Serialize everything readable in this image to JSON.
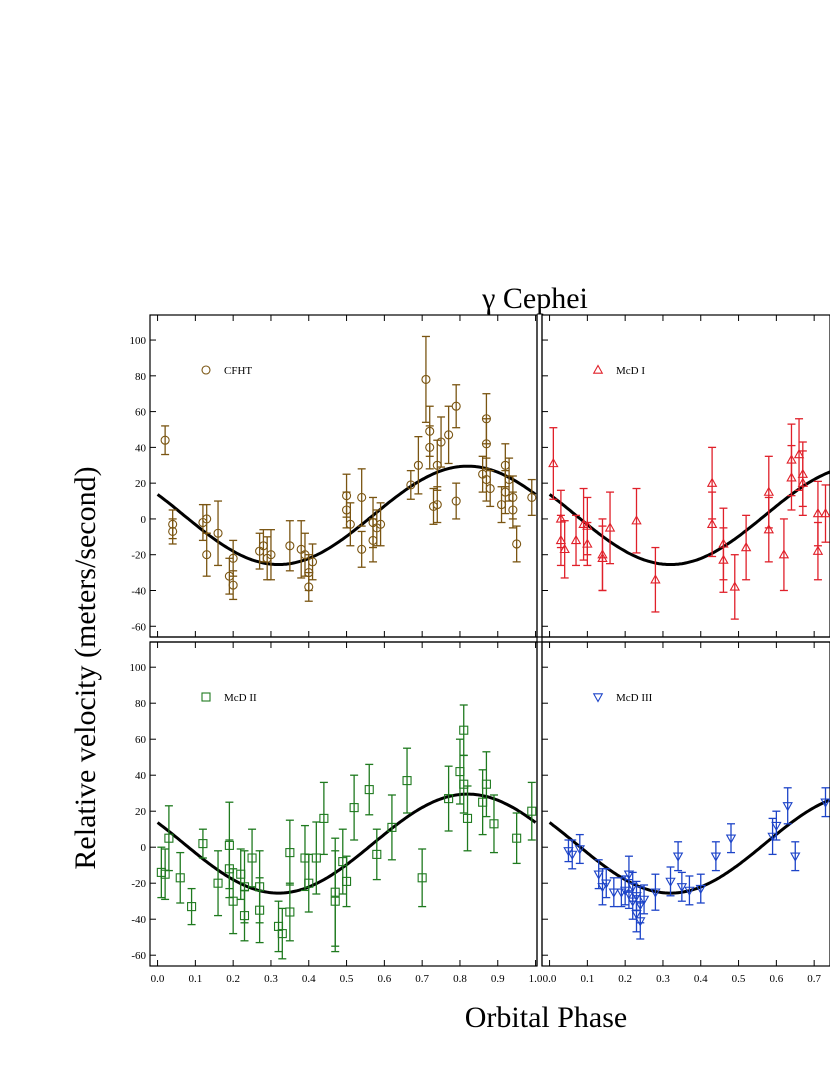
{
  "title": "γ Cephei",
  "xlabel": "Orbital Phase",
  "ylabel": "Relative velocity (meters/second)",
  "colors": {
    "CFHT": "#7a5512",
    "McD I": "#e0202a",
    "McD II": "#1f7a1f",
    "McD III": "#1d44c8",
    "curve": "#000000"
  },
  "chart_data": [
    {
      "type": "scatter",
      "panel": "top-left",
      "legend": "CFHT",
      "marker": "circle",
      "xlim": [
        -0.02,
        1.0
      ],
      "ylim": [
        -66,
        114
      ],
      "xticks": [
        "0.0",
        "0.1",
        "0.2",
        "0.3",
        "0.4",
        "0.5",
        "0.6",
        "0.7",
        "0.8",
        "0.9",
        "1.0"
      ],
      "yticks": [
        "-60",
        "-40",
        "-20",
        "0",
        "20",
        "40",
        "60",
        "80",
        "100"
      ],
      "curve": {
        "offset": 2,
        "amplitude": 27.5,
        "peak_phase": 0.82
      },
      "points": [
        {
          "x": 0.02,
          "y": 44,
          "err": 8
        },
        {
          "x": 0.04,
          "y": -3,
          "err": 8
        },
        {
          "x": 0.04,
          "y": -7,
          "err": 7
        },
        {
          "x": 0.12,
          "y": -2,
          "err": 10
        },
        {
          "x": 0.13,
          "y": 0,
          "err": 8
        },
        {
          "x": 0.13,
          "y": -20,
          "err": 12
        },
        {
          "x": 0.16,
          "y": -8,
          "err": 18
        },
        {
          "x": 0.19,
          "y": -32,
          "err": 10
        },
        {
          "x": 0.2,
          "y": -22,
          "err": 10
        },
        {
          "x": 0.2,
          "y": -37,
          "err": 8
        },
        {
          "x": 0.27,
          "y": -18,
          "err": 10
        },
        {
          "x": 0.28,
          "y": -15,
          "err": 9
        },
        {
          "x": 0.29,
          "y": -22,
          "err": 12
        },
        {
          "x": 0.3,
          "y": -20,
          "err": 14
        },
        {
          "x": 0.35,
          "y": -15,
          "err": 14
        },
        {
          "x": 0.38,
          "y": -17,
          "err": 16
        },
        {
          "x": 0.39,
          "y": -20,
          "err": 12
        },
        {
          "x": 0.4,
          "y": -30,
          "err": 10
        },
        {
          "x": 0.4,
          "y": -38,
          "err": 8
        },
        {
          "x": 0.41,
          "y": -24,
          "err": 10
        },
        {
          "x": 0.5,
          "y": 13,
          "err": 12
        },
        {
          "x": 0.5,
          "y": 5,
          "err": 10
        },
        {
          "x": 0.51,
          "y": -3,
          "err": 12
        },
        {
          "x": 0.54,
          "y": 12,
          "err": 16
        },
        {
          "x": 0.54,
          "y": -17,
          "err": 10
        },
        {
          "x": 0.57,
          "y": -2,
          "err": 14
        },
        {
          "x": 0.57,
          "y": -12,
          "err": 12
        },
        {
          "x": 0.58,
          "y": -5,
          "err": 10
        },
        {
          "x": 0.59,
          "y": -3,
          "err": 12
        },
        {
          "x": 0.67,
          "y": 19,
          "err": 8
        },
        {
          "x": 0.69,
          "y": 30,
          "err": 16
        },
        {
          "x": 0.71,
          "y": 78,
          "err": 24
        },
        {
          "x": 0.72,
          "y": 49,
          "err": 14
        },
        {
          "x": 0.72,
          "y": 40,
          "err": 12
        },
        {
          "x": 0.73,
          "y": 7,
          "err": 10
        },
        {
          "x": 0.74,
          "y": 30,
          "err": 14
        },
        {
          "x": 0.74,
          "y": 8,
          "err": 10
        },
        {
          "x": 0.75,
          "y": 43,
          "err": 14
        },
        {
          "x": 0.77,
          "y": 47,
          "err": 16
        },
        {
          "x": 0.79,
          "y": 63,
          "err": 12
        },
        {
          "x": 0.79,
          "y": 10,
          "err": 10
        },
        {
          "x": 0.86,
          "y": 25,
          "err": 10
        },
        {
          "x": 0.87,
          "y": 56,
          "err": 14
        },
        {
          "x": 0.87,
          "y": 42,
          "err": 14
        },
        {
          "x": 0.87,
          "y": 22,
          "err": 12
        },
        {
          "x": 0.88,
          "y": 17,
          "err": 10
        },
        {
          "x": 0.91,
          "y": 8,
          "err": 10
        },
        {
          "x": 0.92,
          "y": 30,
          "err": 12
        },
        {
          "x": 0.92,
          "y": 15,
          "err": 12
        },
        {
          "x": 0.93,
          "y": 22,
          "err": 12
        },
        {
          "x": 0.94,
          "y": 12,
          "err": 12
        },
        {
          "x": 0.94,
          "y": 5,
          "err": 10
        },
        {
          "x": 0.95,
          "y": -14,
          "err": 10
        },
        {
          "x": 0.99,
          "y": 12,
          "err": 10
        }
      ]
    },
    {
      "type": "scatter",
      "panel": "top-right",
      "legend": "McD I",
      "marker": "triangle-up",
      "xlim": [
        -0.02,
        1.0
      ],
      "ylim": [
        -66,
        114
      ],
      "curve": {
        "offset": 2,
        "amplitude": 27.5,
        "peak_phase": 0.82
      },
      "points": [
        {
          "x": 0.01,
          "y": 31,
          "err": 20
        },
        {
          "x": 0.03,
          "y": 0,
          "err": 16
        },
        {
          "x": 0.03,
          "y": -12,
          "err": 14
        },
        {
          "x": 0.04,
          "y": -17,
          "err": 16
        },
        {
          "x": 0.07,
          "y": -12,
          "err": 14
        },
        {
          "x": 0.09,
          "y": -3,
          "err": 20
        },
        {
          "x": 0.1,
          "y": -4,
          "err": 16
        },
        {
          "x": 0.1,
          "y": -14,
          "err": 12
        },
        {
          "x": 0.14,
          "y": -20,
          "err": 20
        },
        {
          "x": 0.14,
          "y": -22,
          "err": 18
        },
        {
          "x": 0.16,
          "y": -5,
          "err": 20
        },
        {
          "x": 0.23,
          "y": -1,
          "err": 18
        },
        {
          "x": 0.28,
          "y": -34,
          "err": 18
        },
        {
          "x": 0.43,
          "y": 20,
          "err": 20
        },
        {
          "x": 0.43,
          "y": -3,
          "err": 18
        },
        {
          "x": 0.46,
          "y": -23,
          "err": 18
        },
        {
          "x": 0.46,
          "y": -14,
          "err": 20
        },
        {
          "x": 0.49,
          "y": -38,
          "err": 18
        },
        {
          "x": 0.52,
          "y": -16,
          "err": 18
        },
        {
          "x": 0.58,
          "y": 15,
          "err": 20
        },
        {
          "x": 0.58,
          "y": -6,
          "err": 18
        },
        {
          "x": 0.62,
          "y": -20,
          "err": 20
        },
        {
          "x": 0.64,
          "y": 23,
          "err": 18
        },
        {
          "x": 0.64,
          "y": 33,
          "err": 20
        },
        {
          "x": 0.66,
          "y": 36,
          "err": 20
        },
        {
          "x": 0.67,
          "y": 25,
          "err": 18
        },
        {
          "x": 0.67,
          "y": 20,
          "err": 18
        },
        {
          "x": 0.71,
          "y": 3,
          "err": 18
        },
        {
          "x": 0.71,
          "y": -18,
          "err": 16
        },
        {
          "x": 0.73,
          "y": 3,
          "err": 16
        }
      ]
    },
    {
      "type": "scatter",
      "panel": "bottom-left",
      "legend": "McD II",
      "marker": "square",
      "xlim": [
        -0.02,
        1.0
      ],
      "ylim": [
        -66,
        114
      ],
      "xticks": [
        "0.0",
        "0.1",
        "0.2",
        "0.3",
        "0.4",
        "0.5",
        "0.6",
        "0.7",
        "0.8",
        "0.9",
        "1.0"
      ],
      "yticks": [
        "-60",
        "-40",
        "-20",
        "0",
        "20",
        "40",
        "60",
        "80",
        "100"
      ],
      "curve": {
        "offset": 2,
        "amplitude": 27.5,
        "peak_phase": 0.82
      },
      "points": [
        {
          "x": 0.01,
          "y": -14,
          "err": 14
        },
        {
          "x": 0.02,
          "y": -15,
          "err": 14
        },
        {
          "x": 0.03,
          "y": 5,
          "err": 18
        },
        {
          "x": 0.06,
          "y": -17,
          "err": 14
        },
        {
          "x": 0.09,
          "y": -33,
          "err": 10
        },
        {
          "x": 0.12,
          "y": 2,
          "err": 8
        },
        {
          "x": 0.16,
          "y": -20,
          "err": 18
        },
        {
          "x": 0.19,
          "y": 1,
          "err": 24
        },
        {
          "x": 0.19,
          "y": -12,
          "err": 16
        },
        {
          "x": 0.2,
          "y": -30,
          "err": 18
        },
        {
          "x": 0.22,
          "y": -15,
          "err": 14
        },
        {
          "x": 0.23,
          "y": -22,
          "err": 20
        },
        {
          "x": 0.23,
          "y": -38,
          "err": 14
        },
        {
          "x": 0.25,
          "y": -6,
          "err": 16
        },
        {
          "x": 0.27,
          "y": -22,
          "err": 20
        },
        {
          "x": 0.27,
          "y": -35,
          "err": 18
        },
        {
          "x": 0.32,
          "y": -44,
          "err": 14
        },
        {
          "x": 0.33,
          "y": -48,
          "err": 14
        },
        {
          "x": 0.35,
          "y": -3,
          "err": 18
        },
        {
          "x": 0.35,
          "y": -36,
          "err": 16
        },
        {
          "x": 0.39,
          "y": -6,
          "err": 18
        },
        {
          "x": 0.4,
          "y": -20,
          "err": 16
        },
        {
          "x": 0.42,
          "y": -6,
          "err": 20
        },
        {
          "x": 0.44,
          "y": 16,
          "err": 20
        },
        {
          "x": 0.47,
          "y": -25,
          "err": 30
        },
        {
          "x": 0.47,
          "y": -30,
          "err": 28
        },
        {
          "x": 0.49,
          "y": -8,
          "err": 18
        },
        {
          "x": 0.5,
          "y": -19,
          "err": 14
        },
        {
          "x": 0.52,
          "y": 22,
          "err": 18
        },
        {
          "x": 0.56,
          "y": 32,
          "err": 14
        },
        {
          "x": 0.58,
          "y": -4,
          "err": 14
        },
        {
          "x": 0.62,
          "y": 11,
          "err": 18
        },
        {
          "x": 0.66,
          "y": 37,
          "err": 18
        },
        {
          "x": 0.7,
          "y": -17,
          "err": 16
        },
        {
          "x": 0.77,
          "y": 27,
          "err": 18
        },
        {
          "x": 0.8,
          "y": 42,
          "err": 18
        },
        {
          "x": 0.81,
          "y": 65,
          "err": 14
        },
        {
          "x": 0.81,
          "y": 35,
          "err": 16
        },
        {
          "x": 0.82,
          "y": 16,
          "err": 18
        },
        {
          "x": 0.86,
          "y": 25,
          "err": 18
        },
        {
          "x": 0.87,
          "y": 35,
          "err": 18
        },
        {
          "x": 0.89,
          "y": 13,
          "err": 16
        },
        {
          "x": 0.95,
          "y": 5,
          "err": 14
        },
        {
          "x": 0.99,
          "y": 20,
          "err": 16
        }
      ]
    },
    {
      "type": "scatter",
      "panel": "bottom-right",
      "legend": "McD III",
      "marker": "triangle-down",
      "xlim": [
        -0.02,
        1.0
      ],
      "ylim": [
        -66,
        114
      ],
      "xticks": [
        "0.0",
        "0.1",
        "0.2",
        "0.3",
        "0.4",
        "0.5",
        "0.6",
        "0.7"
      ],
      "curve": {
        "offset": 2,
        "amplitude": 27.5,
        "peak_phase": 0.82
      },
      "points": [
        {
          "x": 0.05,
          "y": -2,
          "err": 6
        },
        {
          "x": 0.06,
          "y": -4,
          "err": 8
        },
        {
          "x": 0.08,
          "y": -1,
          "err": 8
        },
        {
          "x": 0.13,
          "y": -15,
          "err": 8
        },
        {
          "x": 0.14,
          "y": -22,
          "err": 10
        },
        {
          "x": 0.15,
          "y": -20,
          "err": 8
        },
        {
          "x": 0.17,
          "y": -25,
          "err": 8
        },
        {
          "x": 0.19,
          "y": -25,
          "err": 8
        },
        {
          "x": 0.2,
          "y": -24,
          "err": 8
        },
        {
          "x": 0.21,
          "y": -15,
          "err": 10
        },
        {
          "x": 0.21,
          "y": -26,
          "err": 8
        },
        {
          "x": 0.22,
          "y": -30,
          "err": 10
        },
        {
          "x": 0.22,
          "y": -22,
          "err": 8
        },
        {
          "x": 0.23,
          "y": -27,
          "err": 8
        },
        {
          "x": 0.23,
          "y": -37,
          "err": 10
        },
        {
          "x": 0.24,
          "y": -41,
          "err": 10
        },
        {
          "x": 0.24,
          "y": -32,
          "err": 10
        },
        {
          "x": 0.25,
          "y": -29,
          "err": 8
        },
        {
          "x": 0.28,
          "y": -25,
          "err": 10
        },
        {
          "x": 0.32,
          "y": -19,
          "err": 8
        },
        {
          "x": 0.34,
          "y": -5,
          "err": 8
        },
        {
          "x": 0.35,
          "y": -22,
          "err": 8
        },
        {
          "x": 0.37,
          "y": -24,
          "err": 8
        },
        {
          "x": 0.4,
          "y": -23,
          "err": 8
        },
        {
          "x": 0.44,
          "y": -5,
          "err": 8
        },
        {
          "x": 0.48,
          "y": 5,
          "err": 8
        },
        {
          "x": 0.59,
          "y": 6,
          "err": 10
        },
        {
          "x": 0.6,
          "y": 12,
          "err": 8
        },
        {
          "x": 0.63,
          "y": 23,
          "err": 10
        },
        {
          "x": 0.65,
          "y": -5,
          "err": 8
        },
        {
          "x": 0.73,
          "y": 25,
          "err": 8
        }
      ]
    }
  ]
}
